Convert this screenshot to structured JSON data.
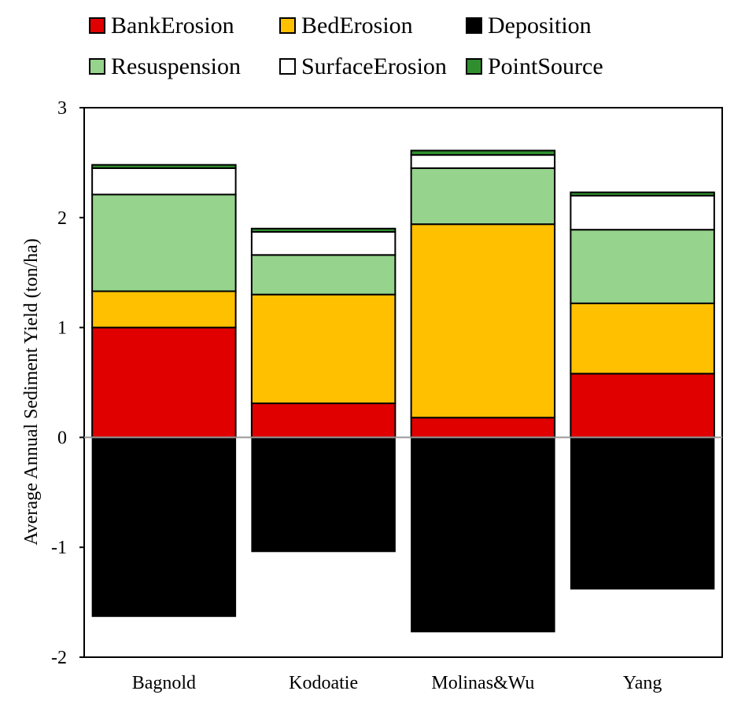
{
  "chart_data": {
    "type": "bar",
    "stacked": true,
    "title": "",
    "xlabel": "",
    "ylabel": "Average Annual Sediment Yield (ton/ha)",
    "ylim": [
      -2,
      3
    ],
    "yticks": [
      "3",
      "2",
      "1",
      "0",
      "-1",
      "-2"
    ],
    "ytick_values": [
      3,
      2,
      1,
      0,
      -1,
      -2
    ],
    "grid": false,
    "legend_position": "top",
    "categories": [
      "Bagnold",
      "Kodoatie",
      "Molinas&Wu",
      "Yang"
    ],
    "series": [
      {
        "name": "BankErosion",
        "color": "#e00000",
        "values": [
          1.0,
          0.31,
          0.18,
          0.58
        ]
      },
      {
        "name": "BedErosion",
        "color": "#ffc000",
        "values": [
          0.33,
          0.99,
          1.76,
          0.64
        ]
      },
      {
        "name": "Deposition",
        "color": "#000000",
        "values": [
          -1.63,
          -1.04,
          -1.77,
          -1.38
        ]
      },
      {
        "name": "Resuspension",
        "color": "#96d38c",
        "values": [
          0.88,
          0.36,
          0.51,
          0.67
        ]
      },
      {
        "name": "SurfaceErosion",
        "color": "#ffffff",
        "values": [
          0.24,
          0.21,
          0.12,
          0.31
        ]
      },
      {
        "name": "PointSource",
        "color": "#2f8f2f",
        "values": [
          0.03,
          0.03,
          0.04,
          0.03
        ]
      }
    ]
  }
}
